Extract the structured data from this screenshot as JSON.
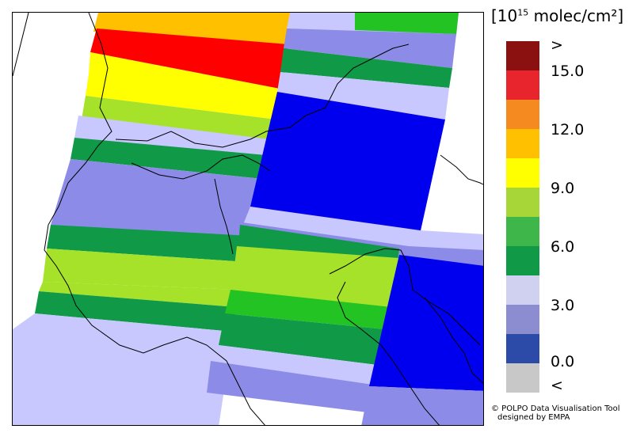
{
  "legend": {
    "title_base": "[10",
    "title_exp": "15",
    "title_unit": " molec/cm²]",
    "colors": [
      "#8b1010",
      "#e8242c",
      "#f48a20",
      "#ffc000",
      "#ffff00",
      "#a6d638",
      "#3fb649",
      "#109a48",
      "#d0d0f0",
      "#8c8cd0",
      "#2c4aa8",
      "#c8c8c8"
    ],
    "labels": [
      ">",
      "15.0",
      "12.0",
      "9.0",
      "6.0",
      "3.0",
      "0.0",
      "<"
    ]
  },
  "credit": {
    "line1": "© POLPO Data Visualisation Tool",
    "line2": "designed by EMPA"
  }
}
